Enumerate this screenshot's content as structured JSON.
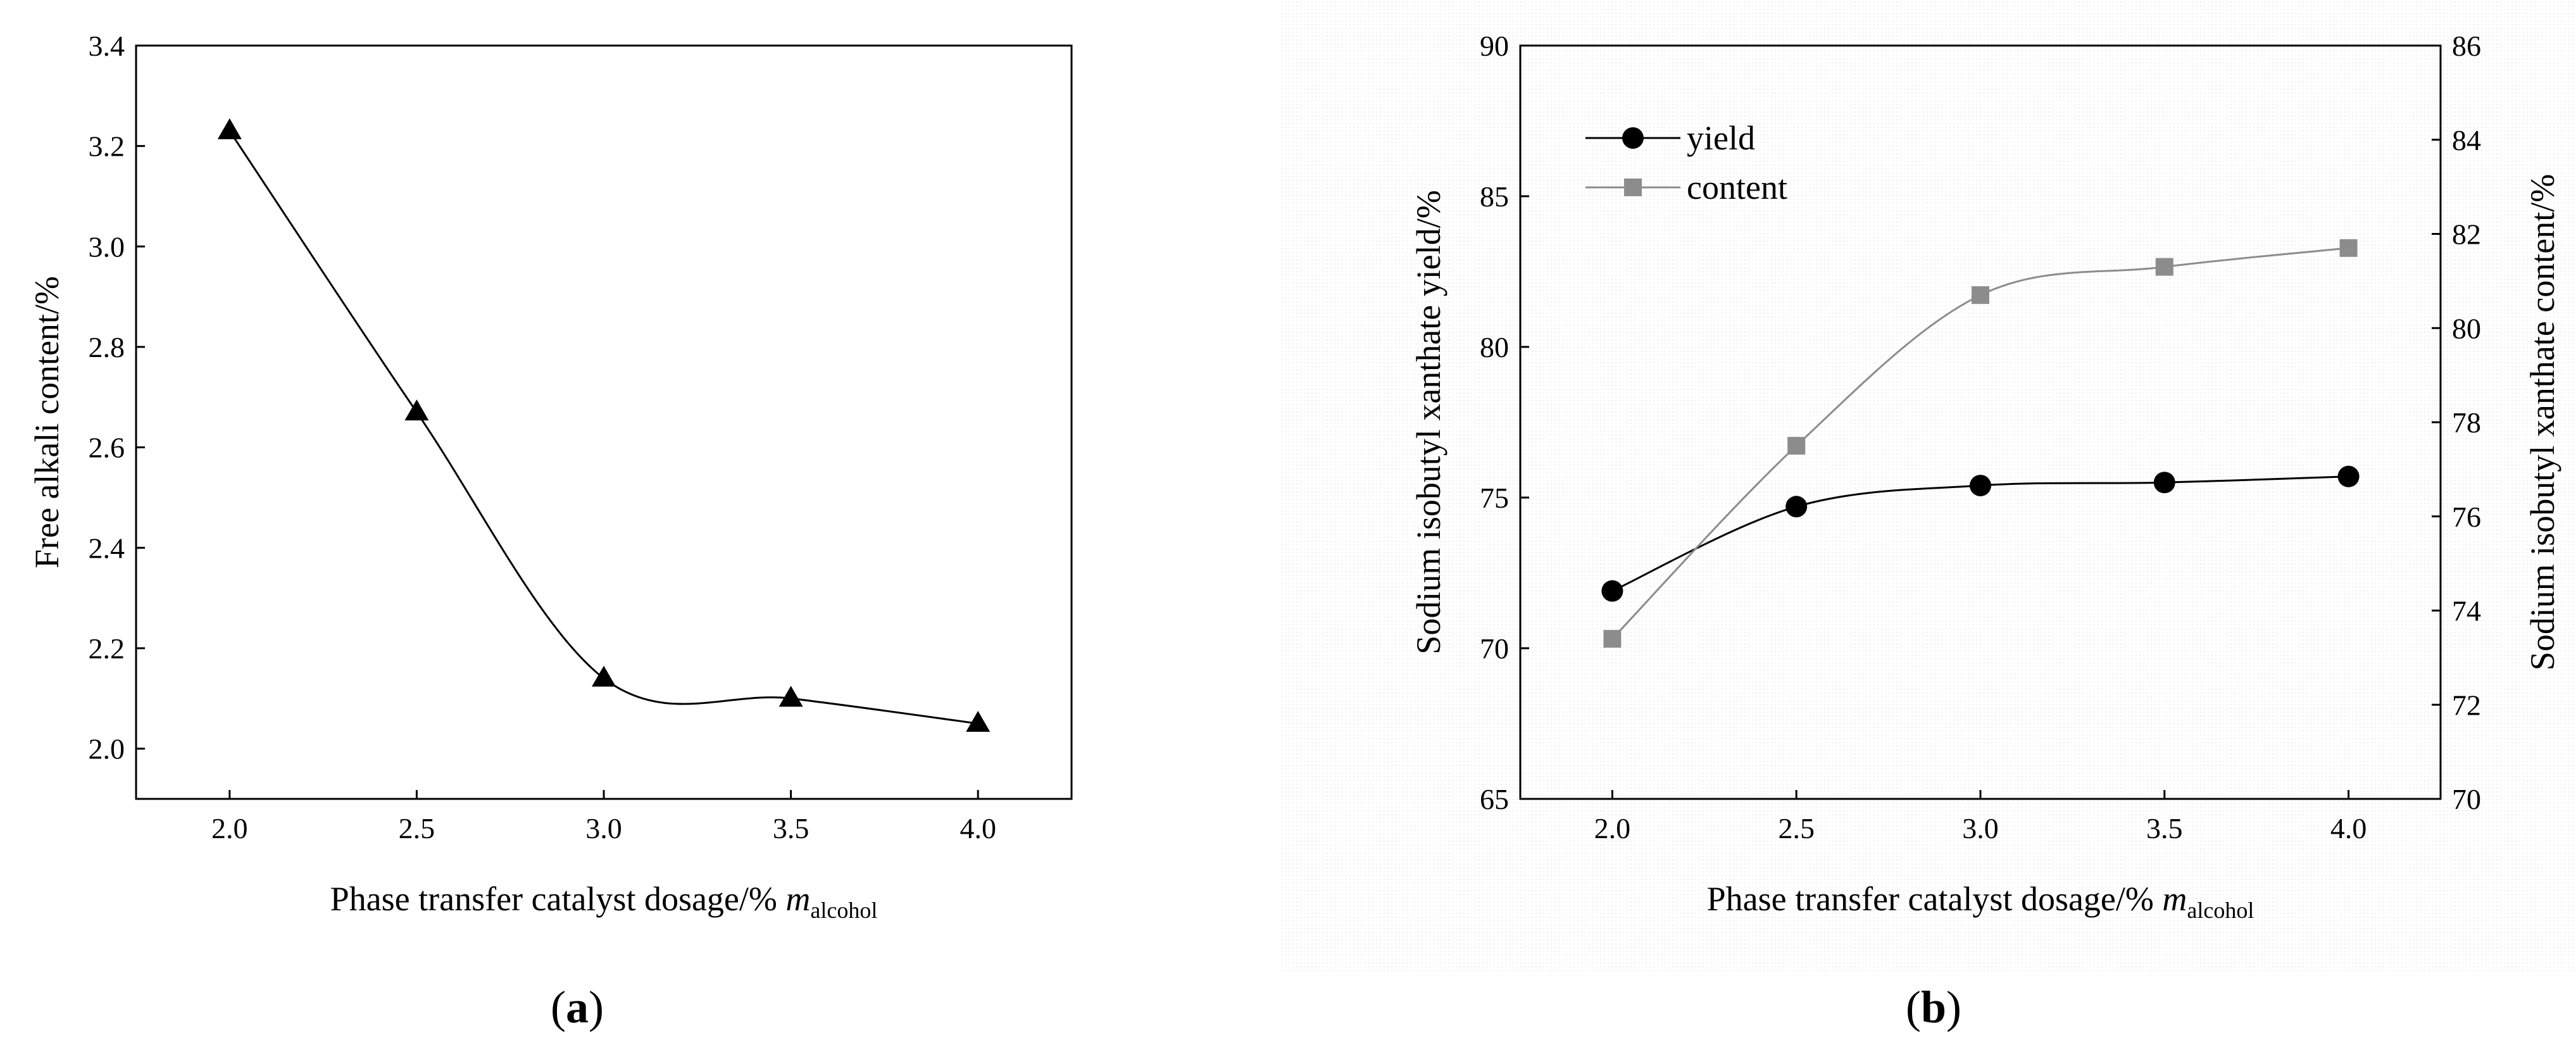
{
  "chart_data": [
    {
      "type": "line",
      "panel_label": "(a)",
      "xlabel": "Phase transfer catalyst dosage/% m",
      "xlabel_sub": "alcohol",
      "ylabel": "Free alkali content/%",
      "xlim": [
        1.75,
        4.25
      ],
      "ylim": [
        1.9,
        3.4
      ],
      "xticks": [
        "2.0",
        "2.5",
        "3.0",
        "3.5",
        "4.0"
      ],
      "yticks": [
        "2.0",
        "2.2",
        "2.4",
        "2.6",
        "2.8",
        "3.0",
        "3.2",
        "3.4"
      ],
      "series": [
        {
          "name": "free alkali",
          "marker": "triangle",
          "color": "#000000",
          "x": [
            2.0,
            2.5,
            3.0,
            3.5,
            4.0
          ],
          "y": [
            3.23,
            2.67,
            2.14,
            2.1,
            2.05
          ]
        }
      ]
    },
    {
      "type": "line",
      "panel_label": "(b)",
      "xlabel": "Phase transfer catalyst dosage/% m",
      "xlabel_sub": "alcohol",
      "ylabel": "Sodium isobutyl xanthate yield/%",
      "ylabel_right": "Sodium isobutyl xanthate content/%",
      "xlim": [
        1.75,
        4.25
      ],
      "ylim": [
        65,
        90
      ],
      "ylim_right": [
        70,
        86
      ],
      "xticks": [
        "2.0",
        "2.5",
        "3.0",
        "3.5",
        "4.0"
      ],
      "yticks": [
        "65",
        "70",
        "75",
        "80",
        "85",
        "90"
      ],
      "yticks_right": [
        "70",
        "72",
        "74",
        "76",
        "78",
        "80",
        "82",
        "84",
        "86"
      ],
      "legend": [
        "yield",
        "content"
      ],
      "legend_position": "top-left",
      "series": [
        {
          "name": "yield",
          "axis": "left",
          "marker": "circle",
          "color": "#000000",
          "x": [
            2.0,
            2.5,
            3.0,
            3.5,
            4.0
          ],
          "y": [
            71.9,
            74.7,
            75.4,
            75.5,
            75.7
          ]
        },
        {
          "name": "content",
          "axis": "right",
          "marker": "square",
          "color": "#8c8c8c",
          "x": [
            2.0,
            2.5,
            3.0,
            3.5,
            4.0
          ],
          "y": [
            73.4,
            77.5,
            80.7,
            81.3,
            81.7
          ]
        }
      ]
    }
  ]
}
